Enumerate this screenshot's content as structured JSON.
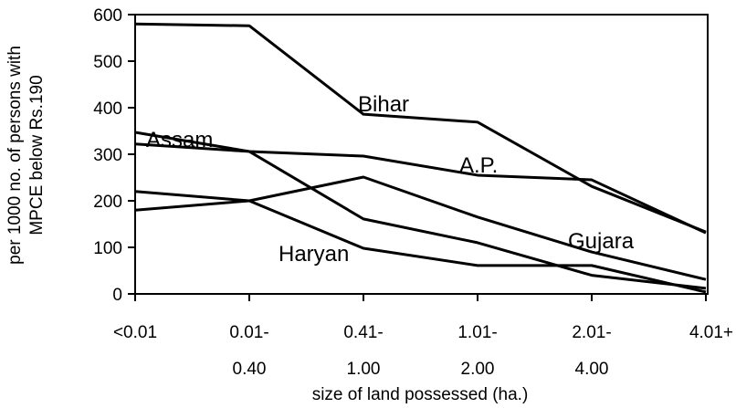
{
  "chart_data": {
    "type": "line",
    "xlabel": "size of land possessed (ha.)",
    "ylabel": [
      "per 1000 no. of persons with",
      "MPCE below Rs.190"
    ],
    "categories": [
      [
        "<0.01"
      ],
      [
        "0.01-",
        "0.40"
      ],
      [
        "0.41-",
        "1.00"
      ],
      [
        "1.01-",
        "2.00"
      ],
      [
        "2.01-",
        "4.00"
      ],
      [
        "4.01+"
      ]
    ],
    "series": [
      {
        "name": "Bihar",
        "color": "#000000",
        "values": [
          580,
          576,
          386,
          369,
          231,
          133
        ]
      },
      {
        "name": "A.P.",
        "color": "#000000",
        "values": [
          322,
          306,
          296,
          255,
          245,
          131
        ]
      },
      {
        "name": "Assam",
        "color": "#000000",
        "values": [
          347,
          306,
          161,
          110,
          40,
          12
        ]
      },
      {
        "name": "Gujara",
        "color": "#000000",
        "values": [
          180,
          200,
          251,
          165,
          90,
          31
        ]
      },
      {
        "name": "Haryan",
        "color": "#000000",
        "values": [
          220,
          200,
          98,
          61,
          61,
          4
        ]
      }
    ],
    "ylim": [
      0,
      600
    ],
    "yticks": [
      0,
      100,
      200,
      300,
      400,
      500,
      600
    ]
  }
}
